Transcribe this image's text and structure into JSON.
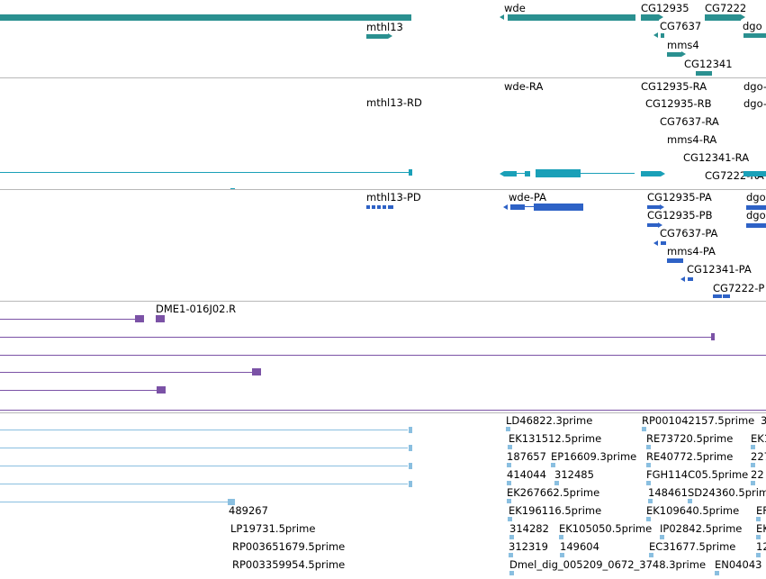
{
  "colors": {
    "gene": "#2a9090",
    "transcript": "#1aa0b8",
    "cds": "#2e62c6",
    "clone": "#7b52a6",
    "est": "#8abfe0",
    "separator": "#b8b8b8"
  },
  "tracks": {
    "genes": {
      "features": [
        {
          "label": ""
        },
        {
          "label": "mthl13"
        },
        {
          "label": "wde"
        },
        {
          "label": "CG12935"
        },
        {
          "label": "CG7637"
        },
        {
          "label": "CG7222"
        },
        {
          "label": "mms4"
        },
        {
          "label": "CG12341"
        },
        {
          "label": "dgo"
        }
      ]
    },
    "transcripts": {
      "features": [
        {
          "label": ""
        },
        {
          "label": ""
        },
        {
          "label": "mthl13-RD"
        },
        {
          "label": "wde-RA"
        },
        {
          "label": "CG12935-RA"
        },
        {
          "label": "CG12935-RB"
        },
        {
          "label": "CG7637-RA"
        },
        {
          "label": "mms4-RA"
        },
        {
          "label": "CG12341-RA"
        },
        {
          "label": "CG7222-RA"
        },
        {
          "label": "dgo-"
        },
        {
          "label": "dgo-"
        }
      ]
    },
    "proteins": {
      "features": [
        {
          "label": "mthl13-PD"
        },
        {
          "label": "wde-PA"
        },
        {
          "label": "CG12935-PA"
        },
        {
          "label": "CG12935-PB"
        },
        {
          "label": "CG7637-PA"
        },
        {
          "label": "mms4-PA"
        },
        {
          "label": "CG12341-PA"
        },
        {
          "label": "CG7222-P"
        },
        {
          "label": "dgo"
        },
        {
          "label": "dgo"
        }
      ]
    },
    "clones": {
      "features": [
        {
          "label": "DME1-016J02.R"
        },
        {
          "label": ""
        },
        {
          "label": ""
        },
        {
          "label": ""
        },
        {
          "label": ""
        },
        {
          "label": ""
        }
      ]
    },
    "ests": {
      "features": [
        {
          "label": ""
        },
        {
          "label": ""
        },
        {
          "label": ""
        },
        {
          "label": ""
        },
        {
          "label": ""
        },
        {
          "label": "489267"
        },
        {
          "label": "LP19731.5prime"
        },
        {
          "label": "RP003651679.5prime"
        },
        {
          "label": "RP003359954.5prime"
        },
        {
          "label": "LD46822.3prime"
        },
        {
          "label": "EK131512.5prime"
        },
        {
          "label": "187657"
        },
        {
          "label": "EP16609.3prime"
        },
        {
          "label": "414044"
        },
        {
          "label": "312485"
        },
        {
          "label": "EK267662.5prime"
        },
        {
          "label": "EK196116.5prime"
        },
        {
          "label": "314282"
        },
        {
          "label": "EK105050.5prime"
        },
        {
          "label": "312319"
        },
        {
          "label": "149604"
        },
        {
          "label": "Dmel_dig_005209_0672_3748.3prime"
        },
        {
          "label": "RP001042157.5prime"
        },
        {
          "label": "RE73720.5prime"
        },
        {
          "label": "RE40772.5prime"
        },
        {
          "label": "FGH114C05.5prime"
        },
        {
          "label": "148461"
        },
        {
          "label": "SD24360.5prime"
        },
        {
          "label": "EK109640.5prime"
        },
        {
          "label": "IP02842.5prime"
        },
        {
          "label": "EC31677.5prime"
        },
        {
          "label": "EN04043"
        },
        {
          "label": "EK1"
        },
        {
          "label": "227"
        },
        {
          "label": "22"
        },
        {
          "label": "EF"
        },
        {
          "label": "EK"
        },
        {
          "label": "12"
        },
        {
          "label": "3"
        }
      ]
    }
  }
}
